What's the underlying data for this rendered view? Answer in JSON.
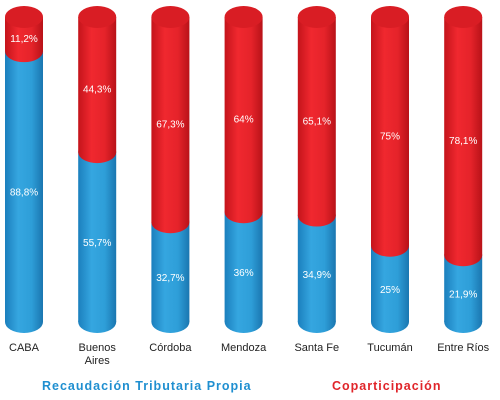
{
  "chart_data": {
    "type": "bar",
    "stacked": true,
    "percent": true,
    "categories": [
      "CABA",
      [
        "Buenos",
        "Aires"
      ],
      "Córdoba",
      "Mendoza",
      "Santa Fe",
      "Tucumán",
      "Entre Ríos"
    ],
    "series": [
      {
        "name": "Recaudación Tributaria Propia",
        "color": "#2e9ed8",
        "values": [
          88.8,
          55.7,
          32.7,
          36,
          34.9,
          25,
          21.9
        ],
        "labels": [
          "88,8%",
          "55,7%",
          "32,7%",
          "36%",
          "34,9%",
          "25%",
          "21,9%"
        ]
      },
      {
        "name": "Coparticipación",
        "color": "#e8232a",
        "values": [
          11.2,
          44.3,
          67.3,
          64,
          65.1,
          75,
          78.1
        ],
        "labels": [
          "11,2%",
          "44,3%",
          "67,3%",
          "64%",
          "65,1%",
          "75%",
          "78,1%"
        ]
      }
    ],
    "ylim": [
      0,
      100
    ],
    "legend_position": "bottom"
  }
}
